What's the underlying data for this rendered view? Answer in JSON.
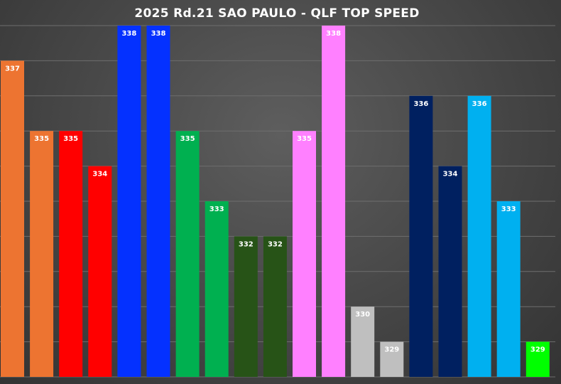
{
  "chart_data": {
    "type": "bar",
    "title": "2025 Rd.21 SAO PAULO - QLF TOP SPEED",
    "xlabel": "",
    "ylabel": "",
    "ylim": [
      328,
      338
    ],
    "grid": true,
    "values": [
      337,
      335,
      335,
      334,
      338,
      338,
      335,
      333,
      332,
      332,
      335,
      338,
      330,
      329,
      336,
      334,
      336,
      333,
      329
    ],
    "colors": [
      "#ED7431",
      "#ED7431",
      "#FF0000",
      "#FF0000",
      "#0431FF",
      "#0431FF",
      "#00B050",
      "#00B050",
      "#275317",
      "#275317",
      "#FF80FF",
      "#FF80FF",
      "#BFBFBF",
      "#BFBFBF",
      "#002060",
      "#002060",
      "#00B0F0",
      "#00B0F0",
      "#00FF00"
    ],
    "labels": [
      "337",
      "335",
      "335",
      "334",
      "338",
      "338",
      "335",
      "333",
      "332",
      "332",
      "335",
      "338",
      "330",
      "329",
      "336",
      "334",
      "336",
      "333",
      "329"
    ]
  }
}
